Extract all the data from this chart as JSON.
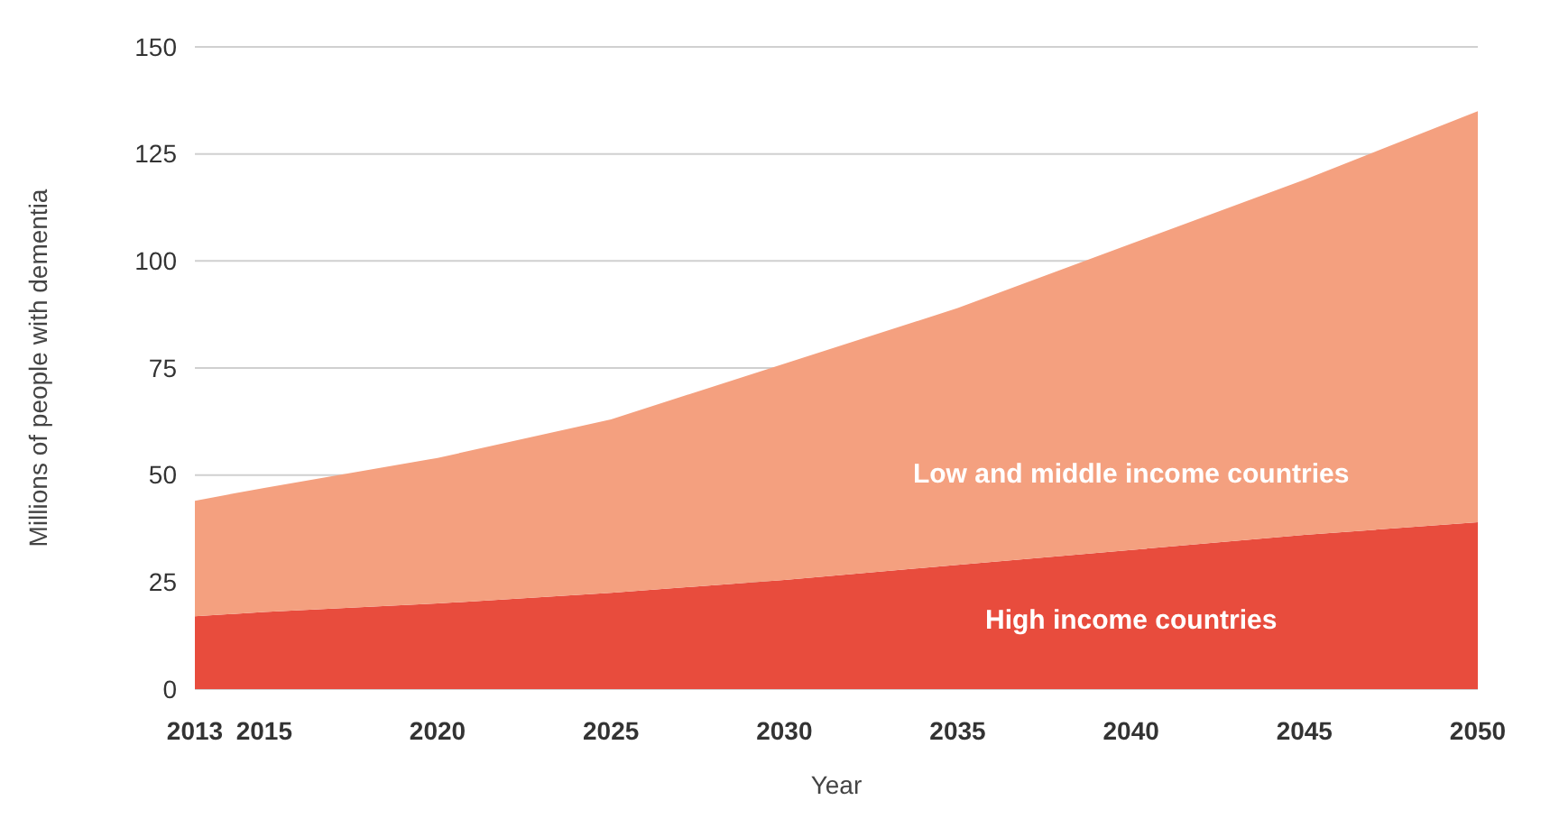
{
  "chart_data": {
    "type": "area",
    "stacked": true,
    "xlabel": "Year",
    "ylabel": "Millions of people with dementia",
    "x": [
      2013,
      2015,
      2020,
      2025,
      2030,
      2035,
      2040,
      2045,
      2050
    ],
    "series": [
      {
        "name": "High income countries",
        "color": "#e84c3d",
        "values": [
          17,
          18,
          20,
          22.5,
          25.5,
          29,
          32.5,
          36,
          39
        ]
      },
      {
        "name": "Low and middle income countries",
        "color": "#f4a07f",
        "values": [
          27,
          29,
          34,
          40.5,
          50.5,
          60,
          71.5,
          83,
          96
        ]
      }
    ],
    "xlim": [
      2013,
      2050
    ],
    "xticks": [
      2013,
      2015,
      2020,
      2025,
      2030,
      2035,
      2040,
      2045,
      2050
    ],
    "ylim": [
      0,
      150
    ],
    "yticks": [
      0,
      25,
      50,
      75,
      100,
      125,
      150
    ],
    "grid": "y",
    "legend": false
  }
}
